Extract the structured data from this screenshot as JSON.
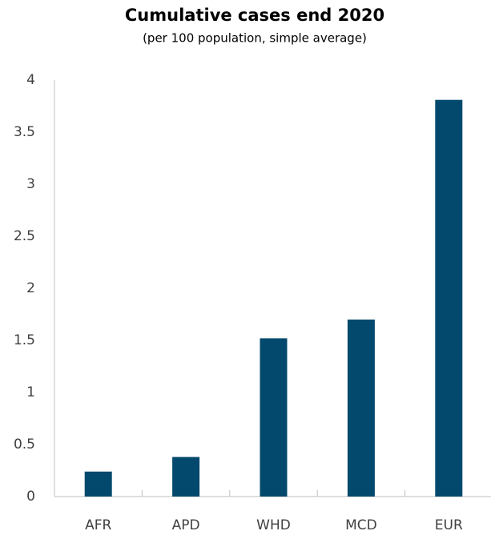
{
  "chart_data": {
    "type": "bar",
    "title": "Cumulative cases end 2020",
    "subtitle": "(per 100 population, simple average)",
    "categories": [
      "AFR",
      "APD",
      "WHD",
      "MCD",
      "EUR"
    ],
    "values": [
      0.24,
      0.38,
      1.52,
      1.7,
      3.81
    ],
    "color": "#03496d",
    "ylim": [
      0,
      4
    ],
    "yticks": [
      0,
      0.5,
      1,
      1.5,
      2,
      2.5,
      3,
      3.5,
      4
    ],
    "grid": false
  }
}
